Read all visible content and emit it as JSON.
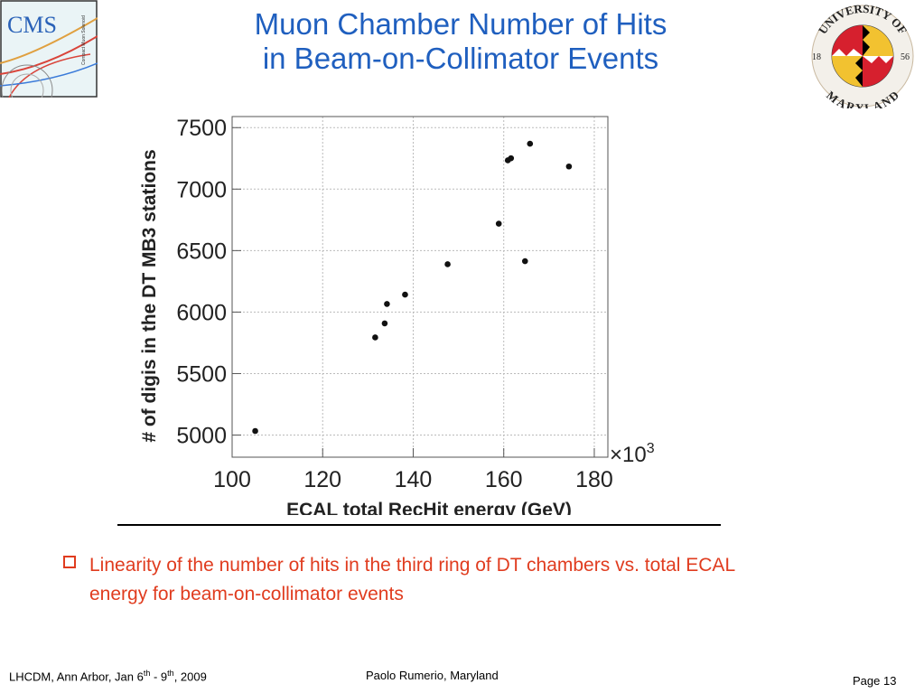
{
  "slide": {
    "title_line1": "Muon Chamber Number of Hits",
    "title_line2": "in Beam-on-Collimator Events",
    "cms_logo": {
      "text": "CMS",
      "subtext": "Compact Muon Solenoid"
    },
    "umd_logo": {
      "top_text": "UNIVERSITY OF",
      "bottom_text": "MARYLAND",
      "year_left": "18",
      "year_right": "56"
    },
    "bullet_text": "Linearity of the number of hits in the third ring of DT chambers vs. total ECAL energy for beam-on-collimator events",
    "footer": {
      "conference": "LHCDM, Ann Arbor, Jan 6",
      "sup1": "th",
      "mid": " - 9",
      "sup2": "th",
      "end": ", 2009",
      "author": "Paolo Rumerio,  Maryland",
      "page": "Page 13"
    },
    "colors": {
      "title": "#1f5fbf",
      "bullet": "#e03c1f"
    }
  },
  "chart_data": {
    "type": "scatter",
    "title": "",
    "xlabel": "ECAL total RecHit energy (GeV)",
    "ylabel": "# of digis in the DT MB3 stations",
    "x_multiplier_label": "×10",
    "x_multiplier_exp": "3",
    "xlim": [
      100,
      183
    ],
    "ylim": [
      4820,
      7590
    ],
    "x_ticks": [
      100,
      120,
      140,
      160,
      180
    ],
    "y_ticks": [
      5000,
      5500,
      6000,
      6500,
      7000,
      7500
    ],
    "x_tick_labels": [
      "100",
      "120",
      "140",
      "160",
      "180"
    ],
    "y_tick_labels": [
      "5000",
      "5500",
      "6000",
      "6500",
      "7000",
      "7500"
    ],
    "grid": true,
    "points": [
      {
        "x": 105.1,
        "y": 5033
      },
      {
        "x": 131.6,
        "y": 5794
      },
      {
        "x": 133.7,
        "y": 5908
      },
      {
        "x": 134.2,
        "y": 6066
      },
      {
        "x": 138.2,
        "y": 6142
      },
      {
        "x": 147.6,
        "y": 6389
      },
      {
        "x": 158.9,
        "y": 6719
      },
      {
        "x": 160.9,
        "y": 7234
      },
      {
        "x": 161.6,
        "y": 7251
      },
      {
        "x": 164.7,
        "y": 6414
      },
      {
        "x": 165.8,
        "y": 7369
      },
      {
        "x": 174.4,
        "y": 7184
      }
    ]
  }
}
